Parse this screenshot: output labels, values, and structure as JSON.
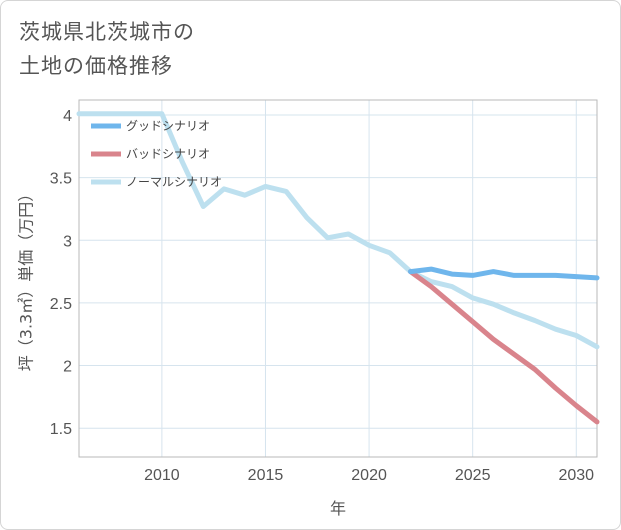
{
  "title_lines": [
    "茨城県北茨城市の",
    "土地の価格推移"
  ],
  "chart_data": {
    "type": "line",
    "xlabel": "年",
    "ylabel": "坪（3.3㎡）単価（万円）",
    "xlim": [
      2006,
      2031
    ],
    "ylim": [
      1.27,
      4.12
    ],
    "x_ticks": [
      2010,
      2015,
      2020,
      2025,
      2030
    ],
    "y_ticks": [
      1.5,
      2,
      2.5,
      3,
      3.5,
      4
    ],
    "y_tick_labels": [
      "1.5",
      "2",
      "2.5",
      "3",
      "3.5",
      "4"
    ],
    "grid": true,
    "legend_position": "top-left",
    "series": [
      {
        "name": "グッドシナリオ",
        "color": "#6fb6ec",
        "x": [
          2022,
          2023,
          2024,
          2025,
          2026,
          2027,
          2028,
          2029,
          2030,
          2031
        ],
        "y": [
          2.75,
          2.77,
          2.73,
          2.72,
          2.75,
          2.72,
          2.72,
          2.72,
          2.71,
          2.7
        ]
      },
      {
        "name": "バッドシナリオ",
        "color": "#d9848c",
        "x": [
          2022,
          2023,
          2024,
          2025,
          2026,
          2027,
          2028,
          2029,
          2030,
          2031
        ],
        "y": [
          2.75,
          2.63,
          2.49,
          2.35,
          2.21,
          2.09,
          1.97,
          1.82,
          1.68,
          1.55
        ]
      },
      {
        "name": "ノーマルシナリオ",
        "color": "#bde0ef",
        "x": [
          2006,
          2010,
          2011,
          2012,
          2013,
          2014,
          2015,
          2016,
          2017,
          2018,
          2019,
          2020,
          2021,
          2022,
          2023,
          2024,
          2025,
          2026,
          2027,
          2028,
          2029,
          2030,
          2031
        ],
        "y": [
          4.01,
          4.01,
          3.62,
          3.27,
          3.41,
          3.36,
          3.43,
          3.39,
          3.18,
          3.02,
          3.05,
          2.96,
          2.9,
          2.75,
          2.67,
          2.63,
          2.54,
          2.49,
          2.42,
          2.36,
          2.29,
          2.24,
          2.15
        ]
      }
    ]
  }
}
